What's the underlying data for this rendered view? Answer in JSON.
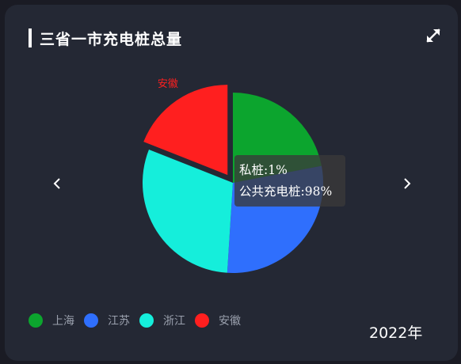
{
  "header": {
    "title": "三省一市充电桩总量",
    "expand_icon": "expand-icon"
  },
  "nav": {
    "prev_icon": "chevron-left-icon",
    "next_icon": "chevron-right-icon"
  },
  "chart_data": {
    "type": "pie",
    "categories": [
      "上海",
      "江苏",
      "浙江",
      "安徽"
    ],
    "values": [
      22,
      29,
      30,
      19
    ],
    "colors": [
      "#0ca52e",
      "#2f6ffd",
      "#15eedb",
      "#ff1f1f"
    ],
    "highlighted_label": "安徽",
    "highlighted_index": 3
  },
  "tooltip": {
    "line1": "私桩:1%",
    "line2": "公共充电桩:98%"
  },
  "year": "2022年",
  "colors": {
    "background": "#1a1b24",
    "card": "#242834",
    "legend_text": "#9aa0ad"
  }
}
